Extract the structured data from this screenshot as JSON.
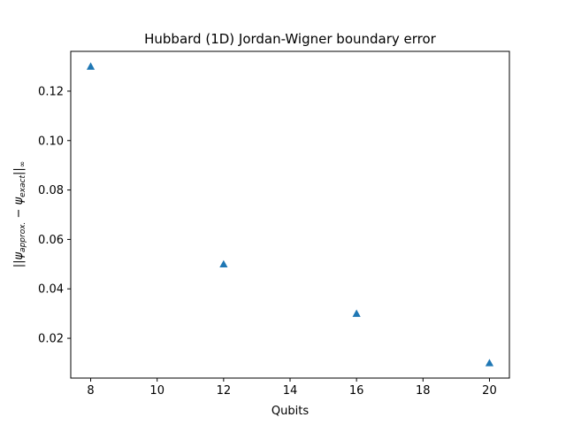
{
  "chart_data": {
    "type": "scatter",
    "title": "Hubbard (1D) Jordan-Wigner boundary error",
    "xlabel": "Qubits",
    "ylabel_parts": {
      "open": "||",
      "psi_a": "ψ",
      "sub_a": "approx.",
      "minus": " − ",
      "psi_b": "ψ",
      "sub_b": "exact",
      "close": "||",
      "norm": "∞"
    },
    "marker": "triangle-up",
    "color": "#1f77b4",
    "grid": false,
    "xlim": [
      7.4,
      20.6
    ],
    "ylim": [
      0.0039,
      0.1361
    ],
    "xticks": [
      8,
      10,
      12,
      14,
      16,
      18,
      20
    ],
    "yticks": [
      0.02,
      0.04,
      0.06,
      0.08,
      0.1,
      0.12
    ],
    "ytick_labels": [
      "0.02",
      "0.04",
      "0.06",
      "0.08",
      "0.10",
      "0.12"
    ],
    "x": [
      8,
      12,
      16,
      20
    ],
    "y": [
      0.13,
      0.05,
      0.03,
      0.01
    ]
  }
}
